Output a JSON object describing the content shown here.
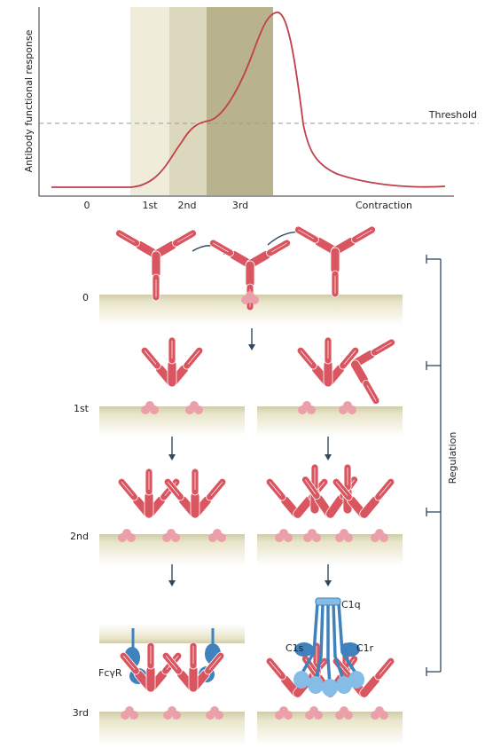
{
  "chart": {
    "ylabel": "Antibody functional response",
    "threshold_label": "Threshold",
    "phases": [
      "0",
      "1st",
      "2nd",
      "3rd",
      "Contraction"
    ]
  },
  "diagram": {
    "stage_labels": [
      "0",
      "1st",
      "2nd",
      "3rd"
    ],
    "regulation_label": "Regulation",
    "receptor_label": "FcγR",
    "complement": {
      "c1q": "C1q",
      "c1s": "C1s",
      "c1r": "C1r"
    }
  },
  "colors": {
    "antibody": "#d9555f",
    "antibody_light": "#f0b4b8",
    "antigen": "#eba0a9",
    "membrane": "#e9e5c9",
    "receptor": "#3f82bd",
    "complement": "#86bde6",
    "curve": "#c0404a",
    "phase1": "#efedda",
    "phase2": "#dbd8bd",
    "phase3": "#b8b38c"
  }
}
